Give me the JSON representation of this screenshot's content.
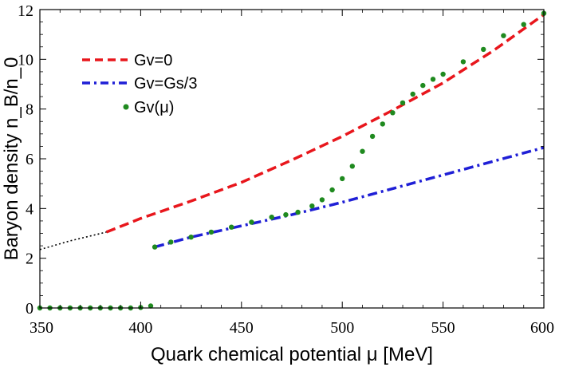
{
  "chart_data": {
    "type": "line",
    "xlabel": "Quark chemical potential μ [MeV]",
    "ylabel": "Baryon density n_B/n_0",
    "xlim": [
      350,
      600
    ],
    "ylim": [
      0,
      12
    ],
    "xticks": [
      350,
      400,
      450,
      500,
      550,
      600
    ],
    "yticks": [
      0,
      2,
      4,
      6,
      8,
      10,
      12
    ],
    "grid": false,
    "legend_position": "top-left",
    "series": [
      {
        "name": "Gv=0",
        "style": "dashed",
        "color": "#e8161c",
        "x": [
          383,
          400,
          425,
          450,
          475,
          500,
          525,
          550,
          575,
          600
        ],
        "y": [
          3.05,
          3.6,
          4.3,
          5.05,
          5.95,
          6.9,
          7.95,
          9.05,
          10.35,
          11.8
        ]
      },
      {
        "name": "Gv=Gs/3",
        "style": "dash-dot",
        "color": "#1f1fd6",
        "x": [
          407,
          425,
          450,
          475,
          500,
          525,
          550,
          575,
          600
        ],
        "y": [
          2.45,
          2.85,
          3.3,
          3.75,
          4.25,
          4.8,
          5.35,
          5.9,
          6.45
        ]
      },
      {
        "name": "Gv(μ)",
        "style": "dots",
        "color": "#1f8a1f",
        "x": [
          407,
          415,
          425,
          435,
          445,
          455,
          465,
          472,
          478,
          485,
          490,
          495,
          500,
          505,
          510,
          515,
          520,
          525,
          530,
          535,
          540,
          545,
          550,
          560,
          570,
          580,
          590,
          600
        ],
        "y": [
          2.45,
          2.65,
          2.85,
          3.05,
          3.25,
          3.45,
          3.65,
          3.75,
          3.85,
          4.1,
          4.35,
          4.75,
          5.2,
          5.7,
          6.3,
          6.9,
          7.4,
          7.85,
          8.25,
          8.6,
          8.95,
          9.2,
          9.4,
          9.9,
          10.4,
          10.95,
          11.4,
          11.85
        ]
      },
      {
        "name": "",
        "style": "dots",
        "color": "#1f8a1f",
        "x": [
          350,
          355,
          360,
          365,
          370,
          375,
          380,
          385,
          390,
          395,
          400,
          405
        ],
        "y": [
          0,
          0,
          0,
          0,
          0,
          0,
          0,
          0,
          0,
          0,
          0.02,
          0.08
        ]
      },
      {
        "name": "",
        "style": "dotted",
        "color": "#000000",
        "x": [
          350,
          365,
          383
        ],
        "y": [
          2.35,
          2.7,
          3.05
        ]
      }
    ]
  }
}
